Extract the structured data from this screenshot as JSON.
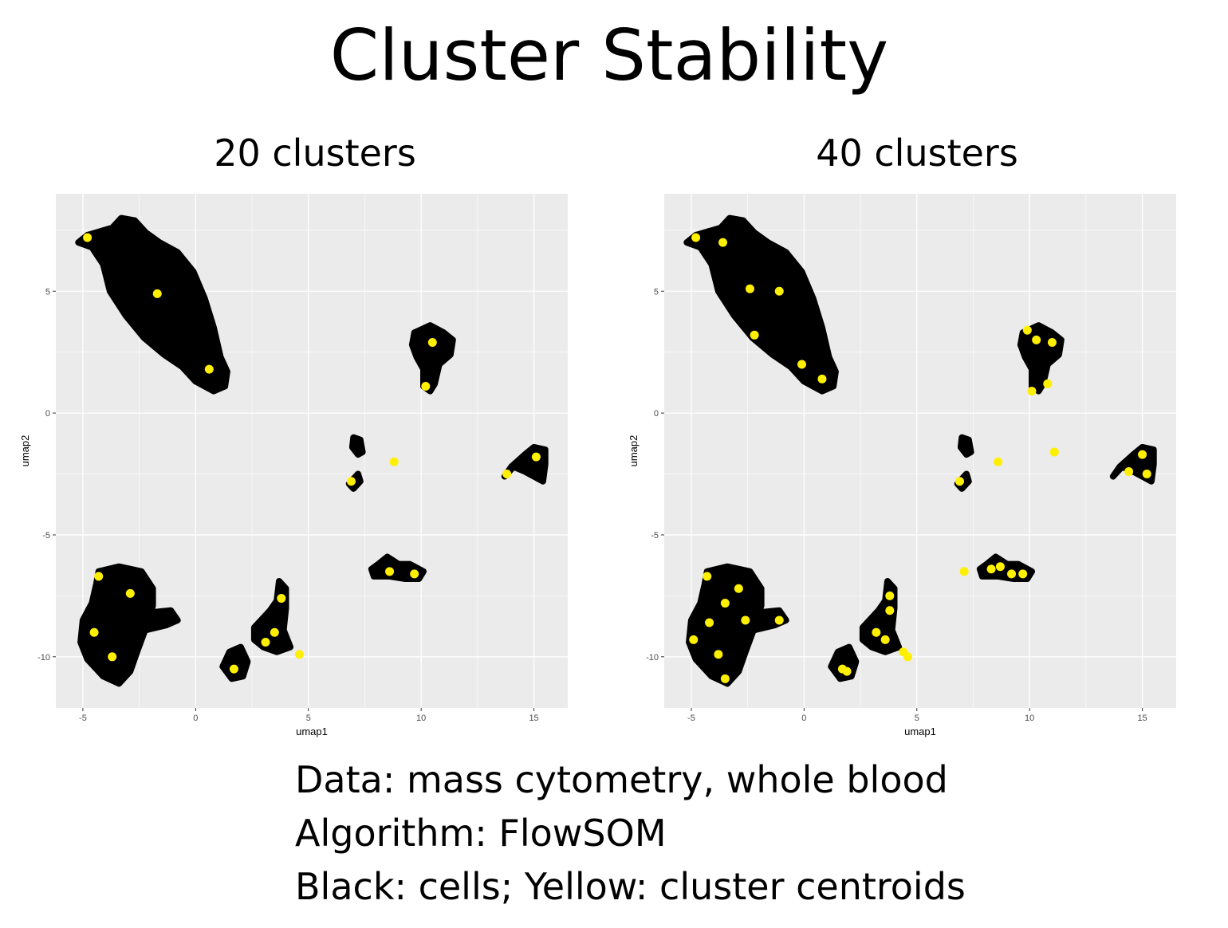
{
  "slide": {
    "title": "Cluster Stability",
    "caption": [
      "Data: mass cytometry, whole blood",
      "Algorithm: FlowSOM",
      "Black: cells; Yellow: cluster centroids"
    ]
  },
  "colors": {
    "cells": "#000000",
    "centroids": "#ffef00",
    "panel_bg": "#ebebeb",
    "grid": "#ffffff"
  },
  "chart_data": [
    {
      "type": "scatter",
      "title": "20 clusters",
      "xlabel": "umap1",
      "ylabel": "umap2",
      "xlim": [
        -6.2,
        16.5
      ],
      "ylim": [
        -12.1,
        9.0
      ],
      "xticks": [
        -5,
        0,
        5,
        10,
        15
      ],
      "yticks": [
        -10,
        -5,
        0,
        5
      ],
      "grid": true,
      "cell_clusters": [
        {
          "shape": "polygon",
          "points": [
            [
              -4.8,
              7.3
            ],
            [
              -3.7,
              7.6
            ],
            [
              -3.3,
              8.0
            ],
            [
              -2.7,
              7.9
            ],
            [
              -2.2,
              7.4
            ],
            [
              -1.6,
              7.0
            ],
            [
              -0.8,
              6.6
            ],
            [
              -0.1,
              5.8
            ],
            [
              0.4,
              4.7
            ],
            [
              0.8,
              3.5
            ],
            [
              1.1,
              2.3
            ],
            [
              1.4,
              1.7
            ],
            [
              1.3,
              1.1
            ],
            [
              0.8,
              0.9
            ],
            [
              0.0,
              1.3
            ],
            [
              -0.6,
              1.9
            ],
            [
              -1.4,
              2.4
            ],
            [
              -2.3,
              3.1
            ],
            [
              -3.1,
              4.0
            ],
            [
              -3.8,
              5.0
            ],
            [
              -4.1,
              6.1
            ],
            [
              -4.6,
              6.8
            ],
            [
              -5.2,
              7.0
            ]
          ]
        },
        {
          "shape": "polygon",
          "points": [
            [
              -4.3,
              -6.5
            ],
            [
              -3.4,
              -6.3
            ],
            [
              -2.4,
              -6.5
            ],
            [
              -1.9,
              -7.2
            ],
            [
              -1.9,
              -7.9
            ],
            [
              -2.2,
              -8.8
            ],
            [
              -2.6,
              -9.8
            ],
            [
              -2.9,
              -10.6
            ],
            [
              -3.4,
              -11.1
            ],
            [
              -4.1,
              -10.8
            ],
            [
              -4.8,
              -10.1
            ],
            [
              -5.1,
              -9.4
            ],
            [
              -5.0,
              -8.5
            ],
            [
              -4.6,
              -7.8
            ],
            [
              -4.4,
              -7.0
            ]
          ]
        },
        {
          "shape": "polygon",
          "points": [
            [
              -2.2,
              -8.2
            ],
            [
              -1.1,
              -8.1
            ],
            [
              -0.8,
              -8.5
            ],
            [
              -1.3,
              -8.7
            ],
            [
              -2.2,
              -8.9
            ]
          ]
        },
        {
          "shape": "polygon",
          "points": [
            [
              9.7,
              3.3
            ],
            [
              10.4,
              3.6
            ],
            [
              11.0,
              3.3
            ],
            [
              11.4,
              3.0
            ],
            [
              11.3,
              2.4
            ],
            [
              10.8,
              2.0
            ],
            [
              10.6,
              1.2
            ],
            [
              10.4,
              0.9
            ],
            [
              10.1,
              1.1
            ],
            [
              10.1,
              1.8
            ],
            [
              9.8,
              2.3
            ],
            [
              9.6,
              2.8
            ]
          ]
        },
        {
          "shape": "polygon",
          "points": [
            [
              14.6,
              -1.7
            ],
            [
              15.0,
              -1.4
            ],
            [
              15.5,
              -1.5
            ],
            [
              15.5,
              -2.1
            ],
            [
              15.4,
              -2.8
            ],
            [
              15.0,
              -2.6
            ],
            [
              14.6,
              -2.4
            ],
            [
              14.1,
              -2.2
            ],
            [
              13.7,
              -2.6
            ],
            [
              14.0,
              -2.2
            ]
          ]
        },
        {
          "shape": "polygon",
          "points": [
            [
              7.0,
              -1.0
            ],
            [
              7.3,
              -1.1
            ],
            [
              7.4,
              -1.6
            ],
            [
              7.2,
              -1.7
            ],
            [
              6.95,
              -1.4
            ]
          ]
        },
        {
          "shape": "polygon",
          "points": [
            [
              6.8,
              -2.9
            ],
            [
              7.2,
              -2.5
            ],
            [
              7.3,
              -2.8
            ],
            [
              7.0,
              -3.1
            ]
          ]
        },
        {
          "shape": "polygon",
          "points": [
            [
              8.1,
              -6.2
            ],
            [
              8.5,
              -5.9
            ],
            [
              9.0,
              -6.2
            ],
            [
              9.5,
              -6.2
            ],
            [
              10.1,
              -6.5
            ],
            [
              9.9,
              -6.8
            ],
            [
              9.3,
              -6.8
            ],
            [
              8.6,
              -6.7
            ],
            [
              7.9,
              -6.7
            ],
            [
              7.8,
              -6.4
            ]
          ]
        },
        {
          "shape": "polygon",
          "points": [
            [
              2.6,
              -8.8
            ],
            [
              3.3,
              -8.1
            ],
            [
              3.6,
              -7.7
            ],
            [
              3.7,
              -6.9
            ],
            [
              4.0,
              -7.2
            ],
            [
              4.0,
              -8.0
            ],
            [
              3.9,
              -8.9
            ],
            [
              4.2,
              -9.6
            ],
            [
              3.6,
              -9.8
            ],
            [
              3.0,
              -9.6
            ],
            [
              2.6,
              -9.3
            ]
          ]
        },
        {
          "shape": "polygon",
          "points": [
            [
              1.5,
              -9.8
            ],
            [
              2.0,
              -9.6
            ],
            [
              2.3,
              -10.2
            ],
            [
              2.1,
              -10.8
            ],
            [
              1.6,
              -10.9
            ],
            [
              1.2,
              -10.4
            ]
          ]
        }
      ],
      "centroids": [
        [
          -4.8,
          7.2
        ],
        [
          -1.7,
          4.9
        ],
        [
          0.6,
          1.8
        ],
        [
          10.5,
          2.9
        ],
        [
          10.2,
          1.1
        ],
        [
          8.8,
          -2.0
        ],
        [
          6.9,
          -2.8
        ],
        [
          13.8,
          -2.5
        ],
        [
          15.1,
          -1.8
        ],
        [
          8.6,
          -6.5
        ],
        [
          9.7,
          -6.6
        ],
        [
          -4.3,
          -6.7
        ],
        [
          -2.9,
          -7.4
        ],
        [
          -4.5,
          -9.0
        ],
        [
          -3.7,
          -10.0
        ],
        [
          3.8,
          -7.6
        ],
        [
          3.5,
          -9.0
        ],
        [
          3.1,
          -9.4
        ],
        [
          4.6,
          -9.9
        ],
        [
          1.7,
          -10.5
        ]
      ]
    },
    {
      "type": "scatter",
      "title": "40 clusters",
      "xlabel": "umap1",
      "ylabel": "umap2",
      "xlim": [
        -6.2,
        16.5
      ],
      "ylim": [
        -12.1,
        9.0
      ],
      "xticks": [
        -5,
        0,
        5,
        10,
        15
      ],
      "yticks": [
        -10,
        -5,
        0,
        5
      ],
      "grid": true,
      "cell_clusters": [
        {
          "shape": "polygon",
          "points": [
            [
              -4.8,
              7.3
            ],
            [
              -3.7,
              7.6
            ],
            [
              -3.3,
              8.0
            ],
            [
              -2.7,
              7.9
            ],
            [
              -2.2,
              7.4
            ],
            [
              -1.6,
              7.0
            ],
            [
              -0.8,
              6.6
            ],
            [
              -0.1,
              5.8
            ],
            [
              0.4,
              4.7
            ],
            [
              0.8,
              3.5
            ],
            [
              1.1,
              2.3
            ],
            [
              1.4,
              1.7
            ],
            [
              1.3,
              1.1
            ],
            [
              0.8,
              0.9
            ],
            [
              0.0,
              1.3
            ],
            [
              -0.6,
              1.9
            ],
            [
              -1.4,
              2.4
            ],
            [
              -2.3,
              3.1
            ],
            [
              -3.1,
              4.0
            ],
            [
              -3.8,
              5.0
            ],
            [
              -4.1,
              6.1
            ],
            [
              -4.6,
              6.8
            ],
            [
              -5.2,
              7.0
            ]
          ]
        },
        {
          "shape": "polygon",
          "points": [
            [
              -4.3,
              -6.5
            ],
            [
              -3.4,
              -6.3
            ],
            [
              -2.4,
              -6.5
            ],
            [
              -1.9,
              -7.2
            ],
            [
              -1.9,
              -7.9
            ],
            [
              -2.2,
              -8.8
            ],
            [
              -2.6,
              -9.8
            ],
            [
              -2.9,
              -10.6
            ],
            [
              -3.4,
              -11.1
            ],
            [
              -4.1,
              -10.8
            ],
            [
              -4.8,
              -10.1
            ],
            [
              -5.1,
              -9.4
            ],
            [
              -5.0,
              -8.5
            ],
            [
              -4.6,
              -7.8
            ],
            [
              -4.4,
              -7.0
            ]
          ]
        },
        {
          "shape": "polygon",
          "points": [
            [
              -2.2,
              -8.2
            ],
            [
              -1.1,
              -8.1
            ],
            [
              -0.8,
              -8.5
            ],
            [
              -1.3,
              -8.7
            ],
            [
              -2.2,
              -8.9
            ]
          ]
        },
        {
          "shape": "polygon",
          "points": [
            [
              9.7,
              3.3
            ],
            [
              10.4,
              3.6
            ],
            [
              11.0,
              3.3
            ],
            [
              11.4,
              3.0
            ],
            [
              11.3,
              2.4
            ],
            [
              10.8,
              2.0
            ],
            [
              10.6,
              1.2
            ],
            [
              10.4,
              0.9
            ],
            [
              10.1,
              1.1
            ],
            [
              10.1,
              1.8
            ],
            [
              9.8,
              2.3
            ],
            [
              9.6,
              2.8
            ]
          ]
        },
        {
          "shape": "polygon",
          "points": [
            [
              14.6,
              -1.7
            ],
            [
              15.0,
              -1.4
            ],
            [
              15.5,
              -1.5
            ],
            [
              15.5,
              -2.1
            ],
            [
              15.4,
              -2.8
            ],
            [
              15.0,
              -2.6
            ],
            [
              14.6,
              -2.4
            ],
            [
              14.1,
              -2.2
            ],
            [
              13.7,
              -2.6
            ],
            [
              14.0,
              -2.2
            ]
          ]
        },
        {
          "shape": "polygon",
          "points": [
            [
              7.0,
              -1.0
            ],
            [
              7.3,
              -1.1
            ],
            [
              7.4,
              -1.6
            ],
            [
              7.2,
              -1.7
            ],
            [
              6.95,
              -1.4
            ]
          ]
        },
        {
          "shape": "polygon",
          "points": [
            [
              6.8,
              -2.9
            ],
            [
              7.2,
              -2.5
            ],
            [
              7.3,
              -2.8
            ],
            [
              7.0,
              -3.1
            ]
          ]
        },
        {
          "shape": "polygon",
          "points": [
            [
              8.1,
              -6.2
            ],
            [
              8.5,
              -5.9
            ],
            [
              9.0,
              -6.2
            ],
            [
              9.5,
              -6.2
            ],
            [
              10.1,
              -6.5
            ],
            [
              9.9,
              -6.8
            ],
            [
              9.3,
              -6.8
            ],
            [
              8.6,
              -6.7
            ],
            [
              7.9,
              -6.7
            ],
            [
              7.8,
              -6.4
            ]
          ]
        },
        {
          "shape": "polygon",
          "points": [
            [
              2.6,
              -8.8
            ],
            [
              3.3,
              -8.1
            ],
            [
              3.6,
              -7.7
            ],
            [
              3.7,
              -6.9
            ],
            [
              4.0,
              -7.2
            ],
            [
              4.0,
              -8.0
            ],
            [
              3.9,
              -8.9
            ],
            [
              4.2,
              -9.6
            ],
            [
              3.6,
              -9.8
            ],
            [
              3.0,
              -9.6
            ],
            [
              2.6,
              -9.3
            ]
          ]
        },
        {
          "shape": "polygon",
          "points": [
            [
              1.5,
              -9.8
            ],
            [
              2.0,
              -9.6
            ],
            [
              2.3,
              -10.2
            ],
            [
              2.1,
              -10.8
            ],
            [
              1.6,
              -10.9
            ],
            [
              1.2,
              -10.4
            ]
          ]
        }
      ],
      "centroids": [
        [
          -4.8,
          7.2
        ],
        [
          -3.6,
          7.0
        ],
        [
          -2.4,
          5.1
        ],
        [
          -1.1,
          5.0
        ],
        [
          -2.2,
          3.2
        ],
        [
          -0.1,
          2.0
        ],
        [
          0.8,
          1.4
        ],
        [
          9.9,
          3.4
        ],
        [
          10.3,
          3.0
        ],
        [
          11.0,
          2.9
        ],
        [
          10.8,
          1.2
        ],
        [
          10.1,
          0.9
        ],
        [
          8.6,
          -2.0
        ],
        [
          11.1,
          -1.6
        ],
        [
          6.9,
          -2.8
        ],
        [
          14.4,
          -2.4
        ],
        [
          15.0,
          -1.7
        ],
        [
          15.2,
          -2.5
        ],
        [
          7.1,
          -6.5
        ],
        [
          8.3,
          -6.4
        ],
        [
          8.7,
          -6.3
        ],
        [
          9.2,
          -6.6
        ],
        [
          9.7,
          -6.6
        ],
        [
          -4.3,
          -6.7
        ],
        [
          -3.5,
          -7.8
        ],
        [
          -2.9,
          -7.2
        ],
        [
          -4.2,
          -8.6
        ],
        [
          -2.6,
          -8.5
        ],
        [
          -4.9,
          -9.3
        ],
        [
          -3.8,
          -9.9
        ],
        [
          -3.5,
          -10.9
        ],
        [
          -1.1,
          -8.5
        ],
        [
          3.8,
          -7.5
        ],
        [
          3.8,
          -8.1
        ],
        [
          3.2,
          -9.0
        ],
        [
          3.6,
          -9.3
        ],
        [
          4.4,
          -9.8
        ],
        [
          4.6,
          -10.0
        ],
        [
          1.7,
          -10.5
        ],
        [
          1.9,
          -10.6
        ]
      ]
    }
  ]
}
